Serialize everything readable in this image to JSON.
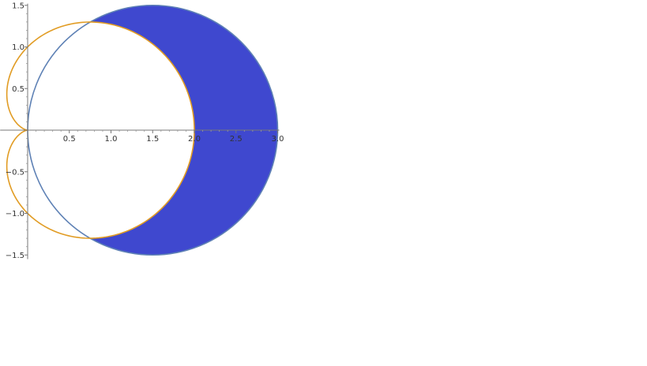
{
  "chart_data": {
    "type": "polar-region",
    "title": "",
    "xlabel": "",
    "ylabel": "",
    "xlim": [
      -0.33,
      3.0
    ],
    "ylim": [
      -1.55,
      1.52
    ],
    "x_ticks": [
      0.5,
      1.0,
      1.5,
      2.0,
      2.5,
      3.0
    ],
    "x_tick_labels": [
      "0.5",
      "1.0",
      "1.5",
      "2.0",
      "2.5",
      "3.0"
    ],
    "y_ticks": [
      -1.5,
      -1.0,
      -0.5,
      0.5,
      1.0,
      1.5
    ],
    "y_tick_labels": [
      "−1.5",
      "−1.0",
      "−0.5",
      "0.5",
      "1.0",
      "1.5"
    ],
    "grid": false,
    "series": [
      {
        "kind": "circle",
        "polar_equation": "r = 3 cos(theta)",
        "center": [
          1.5,
          0
        ],
        "radius": 1.5,
        "color": "#5E81B5"
      },
      {
        "kind": "cardioid",
        "polar_equation": "r = 1 + cos(theta)",
        "color": "#E19C24"
      }
    ],
    "shaded_region": {
      "description_equation": "inside r = 3 cos(theta), outside r = 1 + cos(theta)",
      "intersection_points": [
        [
          0.75,
          1.299
        ],
        [
          0.75,
          -1.299
        ]
      ],
      "fill_color": "#3F48CF"
    }
  }
}
